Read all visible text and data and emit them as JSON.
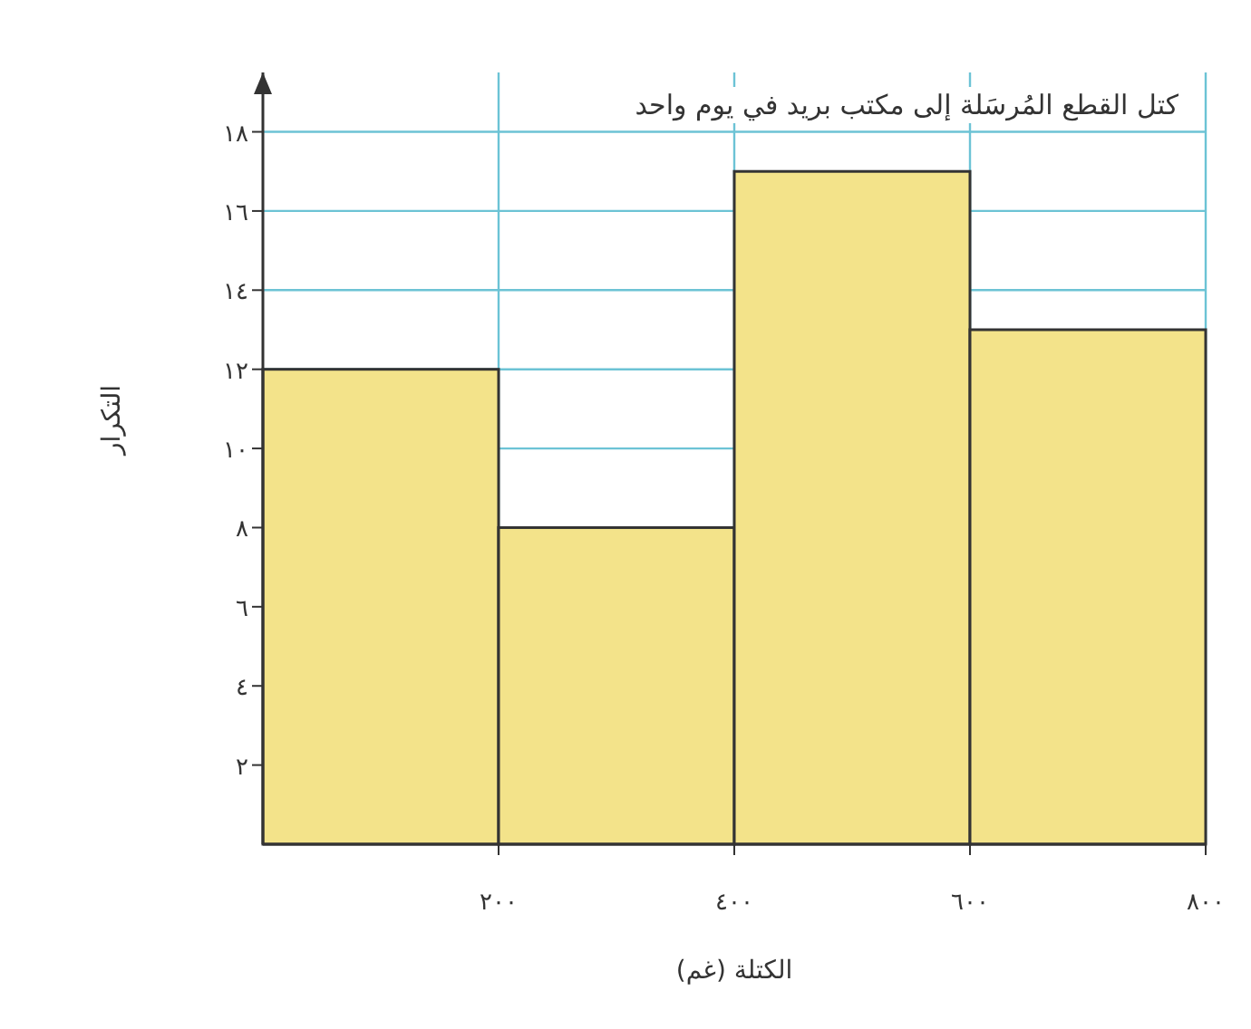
{
  "chart_data": {
    "type": "histogram",
    "title": "كتل القطع المُرسَلة إلى مكتب بريد في يوم واحد",
    "xlabel": "الكتلة (غم)",
    "ylabel": "التكرار",
    "bins": [
      0,
      200,
      400,
      600,
      800
    ],
    "values": [
      12,
      8,
      17,
      13
    ],
    "color": "#f3e38a",
    "xlim": [
      0,
      800
    ],
    "ylim": [
      0,
      19.5
    ],
    "xticks": [
      {
        "value": 200,
        "label": "٢٠٠"
      },
      {
        "value": 400,
        "label": "٤٠٠"
      },
      {
        "value": 600,
        "label": "٦٠٠"
      },
      {
        "value": 800,
        "label": "٨٠٠"
      }
    ],
    "yticks": [
      {
        "value": 2,
        "label": "٢"
      },
      {
        "value": 4,
        "label": "٤"
      },
      {
        "value": 6,
        "label": "٦"
      },
      {
        "value": 8,
        "label": "٨"
      },
      {
        "value": 10,
        "label": "١٠"
      },
      {
        "value": 12,
        "label": "١٢"
      },
      {
        "value": 14,
        "label": "١٤"
      },
      {
        "value": 16,
        "label": "١٦"
      },
      {
        "value": 18,
        "label": "١٨"
      }
    ],
    "grid": true
  }
}
